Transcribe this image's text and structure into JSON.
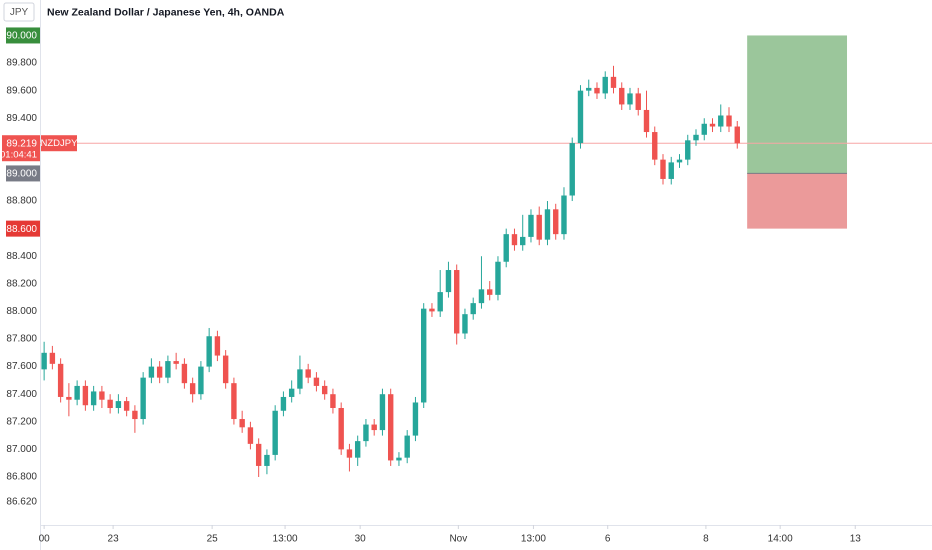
{
  "chart_data": {
    "type": "candlestick",
    "currency": "JPY",
    "title": "New Zealand Dollar / Japanese Yen, 4h, OANDA",
    "symbol": "NZDJPY",
    "countdown": "01:04:41",
    "up_color": "#26a69a",
    "down_color": "#ef5350",
    "open": [
      87.58,
      87.7,
      87.62,
      87.38,
      87.36,
      87.46,
      87.32,
      87.42,
      87.36,
      87.3,
      87.35,
      87.28,
      87.22,
      87.52,
      87.6,
      87.52,
      87.64,
      87.62,
      87.48,
      87.4,
      87.6,
      87.82,
      87.68,
      87.48,
      87.22,
      87.16,
      87.04,
      86.88,
      86.96,
      87.28,
      87.38,
      87.44,
      87.58,
      87.52,
      87.46,
      87.4,
      87.3,
      87.0,
      86.94,
      87.06,
      87.18,
      87.14,
      87.4,
      86.92,
      86.94,
      87.1,
      87.34,
      88.02,
      88.0,
      88.14,
      88.3,
      87.84,
      87.98,
      88.06,
      88.16,
      88.12,
      88.36,
      88.56,
      88.48,
      88.54,
      88.7,
      88.52,
      88.74,
      88.56,
      88.84,
      89.22,
      89.6,
      89.62,
      89.58,
      89.7,
      89.62,
      89.5,
      89.58,
      89.46,
      89.3,
      89.1,
      88.96,
      89.08,
      89.1,
      89.24,
      89.28,
      89.36,
      89.34,
      89.42,
      89.34
    ],
    "high": [
      87.78,
      87.75,
      87.66,
      87.48,
      87.5,
      87.5,
      87.46,
      87.46,
      87.4,
      87.4,
      87.38,
      87.32,
      87.56,
      87.66,
      87.64,
      87.68,
      87.7,
      87.66,
      87.52,
      87.64,
      87.88,
      87.86,
      87.72,
      87.52,
      87.28,
      87.2,
      87.08,
      87.0,
      87.32,
      87.42,
      87.5,
      87.68,
      87.62,
      87.56,
      87.5,
      87.44,
      87.34,
      87.04,
      87.1,
      87.22,
      87.22,
      87.44,
      87.44,
      86.98,
      87.14,
      87.38,
      88.06,
      88.06,
      88.3,
      88.36,
      88.34,
      88.02,
      88.1,
      88.4,
      88.22,
      88.4,
      88.6,
      88.6,
      88.7,
      88.74,
      88.76,
      88.8,
      88.78,
      88.9,
      89.26,
      89.64,
      89.68,
      89.66,
      89.74,
      89.78,
      89.66,
      89.62,
      89.62,
      89.6,
      89.34,
      89.14,
      89.12,
      89.14,
      89.28,
      89.32,
      89.4,
      89.4,
      89.5,
      89.48,
      89.38
    ],
    "low": [
      87.5,
      87.58,
      87.34,
      87.24,
      87.32,
      87.28,
      87.28,
      87.3,
      87.26,
      87.26,
      87.24,
      87.12,
      87.18,
      87.48,
      87.48,
      87.48,
      87.58,
      87.44,
      87.34,
      87.36,
      87.56,
      87.64,
      87.44,
      87.18,
      87.12,
      87.0,
      86.8,
      86.82,
      86.92,
      87.24,
      87.34,
      87.4,
      87.48,
      87.42,
      87.36,
      87.26,
      86.96,
      86.84,
      86.88,
      87.02,
      87.1,
      87.1,
      86.88,
      86.88,
      86.9,
      87.06,
      87.3,
      87.96,
      87.96,
      88.1,
      87.76,
      87.8,
      87.94,
      88.02,
      88.08,
      88.08,
      88.32,
      88.44,
      88.44,
      88.5,
      88.48,
      88.48,
      88.52,
      88.52,
      88.8,
      89.18,
      89.56,
      89.54,
      89.54,
      89.58,
      89.46,
      89.46,
      89.42,
      89.26,
      89.06,
      88.92,
      88.92,
      89.04,
      89.06,
      89.2,
      89.24,
      89.3,
      89.3,
      89.3,
      89.18
    ],
    "close": [
      87.7,
      87.62,
      87.38,
      87.36,
      87.46,
      87.32,
      87.42,
      87.36,
      87.3,
      87.35,
      87.28,
      87.22,
      87.52,
      87.6,
      87.52,
      87.64,
      87.62,
      87.48,
      87.4,
      87.6,
      87.82,
      87.68,
      87.48,
      87.22,
      87.16,
      87.04,
      86.88,
      86.96,
      87.28,
      87.38,
      87.44,
      87.58,
      87.52,
      87.46,
      87.4,
      87.3,
      87.0,
      86.94,
      87.06,
      87.18,
      87.14,
      87.4,
      86.92,
      86.94,
      87.1,
      87.34,
      88.02,
      88.0,
      88.14,
      88.3,
      87.84,
      87.98,
      88.06,
      88.16,
      88.12,
      88.36,
      88.56,
      88.48,
      88.54,
      88.7,
      88.52,
      88.74,
      88.56,
      88.84,
      89.22,
      89.6,
      89.62,
      89.58,
      89.7,
      89.62,
      89.5,
      89.58,
      89.46,
      89.3,
      89.1,
      88.96,
      89.08,
      89.1,
      89.24,
      89.28,
      89.36,
      89.34,
      89.42,
      89.34,
      89.219
    ],
    "last_price": {
      "value": 89.219,
      "label": "89.219"
    },
    "position_box": {
      "start": 85.2,
      "end": 97.3,
      "target": {
        "value": 90,
        "label": "90.000"
      },
      "entry": {
        "value": 89,
        "label": "89.000"
      },
      "stop": {
        "value": 88.6,
        "label": "88.600"
      },
      "target_color": "#9bc69b",
      "stop_color": "#eb9a9a"
    },
    "ylim": [
      86.452,
      90.257
    ],
    "yticks": [
      {
        "value": 86.62,
        "label": "86.620"
      },
      {
        "value": 86.8,
        "label": "86.800"
      },
      {
        "value": 87,
        "label": "87.000"
      },
      {
        "value": 87.2,
        "label": "87.200"
      },
      {
        "value": 87.4,
        "label": "87.400"
      },
      {
        "value": 87.6,
        "label": "87.600"
      },
      {
        "value": 87.8,
        "label": "87.800"
      },
      {
        "value": 88,
        "label": "88.000"
      },
      {
        "value": 88.2,
        "label": "88.200"
      },
      {
        "value": 88.4,
        "label": "88.400"
      },
      {
        "value": 88.8,
        "label": "88.800"
      },
      {
        "value": 89.4,
        "label": "89.400"
      },
      {
        "value": 89.6,
        "label": "89.600"
      },
      {
        "value": 89.8,
        "label": "89.800"
      }
    ],
    "xlim": [
      -0.5,
      107.6
    ],
    "xticks": [
      {
        "value": 0,
        "label": "00"
      },
      {
        "value": 8.36,
        "label": "23"
      },
      {
        "value": 20.36,
        "label": "25"
      },
      {
        "value": 29.2,
        "label": "13:00"
      },
      {
        "value": 38.3,
        "label": "30"
      },
      {
        "value": 50.2,
        "label": "Nov"
      },
      {
        "value": 59.3,
        "label": "13:00"
      },
      {
        "value": 68.3,
        "label": "6"
      },
      {
        "value": 80.2,
        "label": "8"
      },
      {
        "value": 89.2,
        "label": "14:00"
      },
      {
        "value": 98.3,
        "label": "13"
      }
    ]
  }
}
